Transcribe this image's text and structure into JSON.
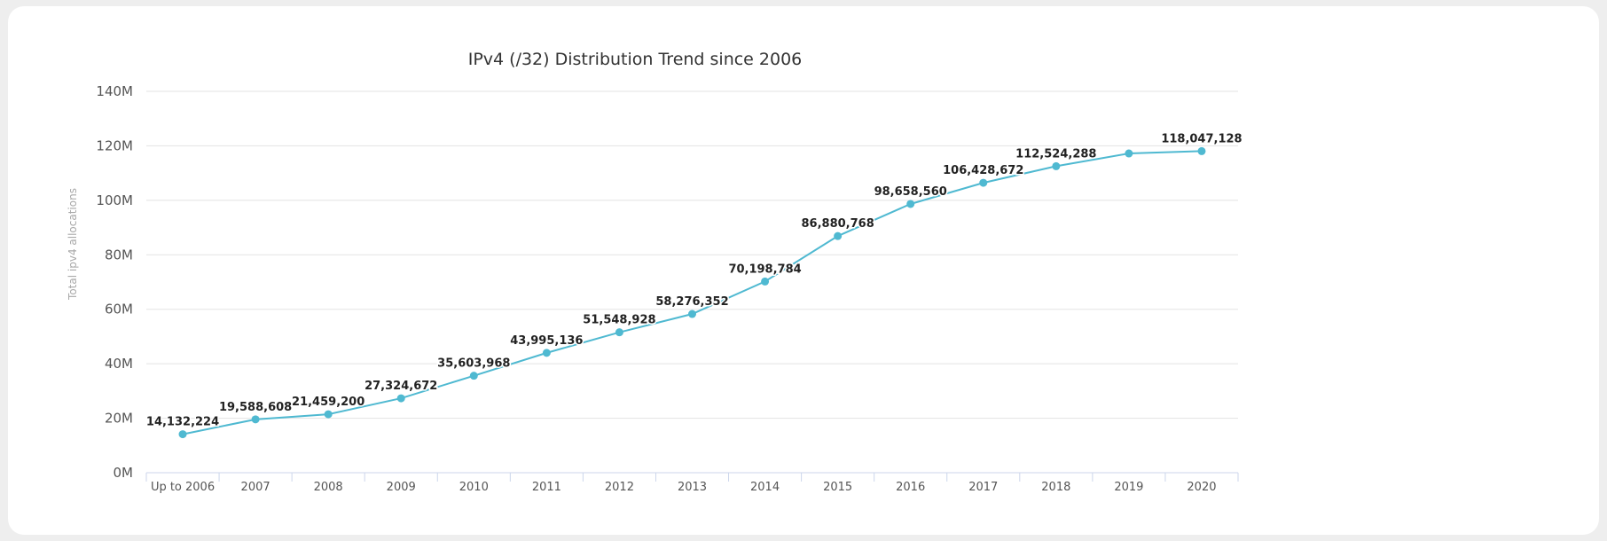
{
  "chart_data": {
    "type": "line",
    "title": "IPv4 (/32) Distribution Trend since 2006",
    "ylabel": "Total ipv4 allocations",
    "xlabel": "",
    "ylim": [
      0,
      140000000
    ],
    "y_ticks": [
      "0M",
      "20M",
      "40M",
      "60M",
      "80M",
      "100M",
      "120M",
      "140M"
    ],
    "grid": true,
    "legend": "none",
    "categories": [
      "Up to 2006",
      "2007",
      "2008",
      "2009",
      "2010",
      "2011",
      "2012",
      "2013",
      "2014",
      "2015",
      "2016",
      "2017",
      "2018",
      "2019",
      "2020"
    ],
    "series": [
      {
        "values": [
          14132224,
          19588608,
          21459200,
          27324672,
          35603968,
          43995136,
          51548928,
          58276352,
          70198784,
          86880768,
          98658560,
          106428672,
          112524288,
          117200000,
          118047128
        ],
        "labels": [
          "14,132,224",
          "19,588,608",
          "21,459,200",
          "27,324,672",
          "35,603,968",
          "43,995,136",
          "51,548,928",
          "58,276,352",
          "70,198,784",
          "86,880,768",
          "98,658,560",
          "106,428,672",
          "112,524,288",
          "",
          "118,047,128"
        ],
        "color": "#4fb9d1"
      }
    ]
  }
}
